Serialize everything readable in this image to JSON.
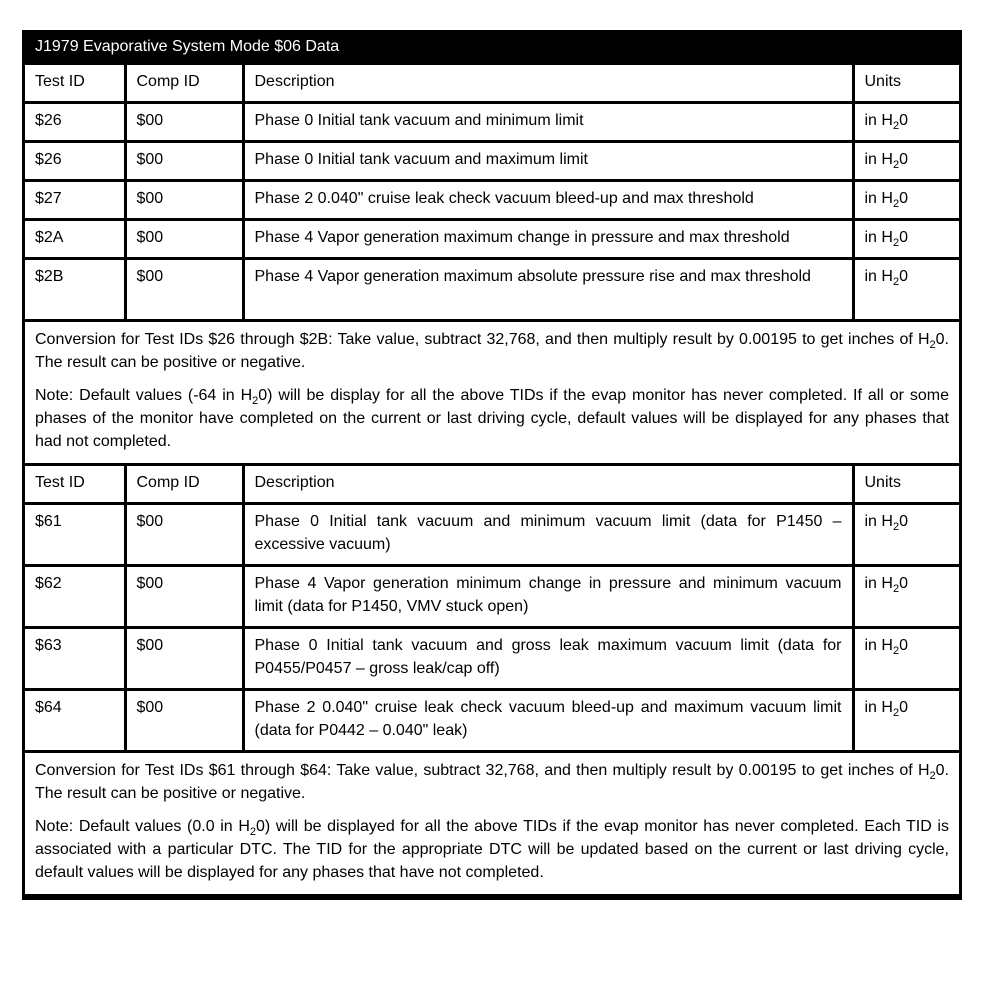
{
  "title": "J1979 Evaporative System Mode $06 Data",
  "headers": {
    "test_id": "Test ID",
    "comp_id": "Comp ID",
    "description": "Description",
    "units": "Units"
  },
  "units_prefix": "in H",
  "units_sub": "2",
  "units_suffix": "0",
  "section1": {
    "rows": [
      {
        "test_id": "$26",
        "comp_id": "$00",
        "description": "Phase 0 Initial tank vacuum and minimum limit"
      },
      {
        "test_id": "$26",
        "comp_id": "$00",
        "description": "Phase 0 Initial tank vacuum and maximum limit"
      },
      {
        "test_id": "$27",
        "comp_id": "$00",
        "description": "Phase 2 0.040\" cruise leak check vacuum bleed-up and max threshold"
      },
      {
        "test_id": "$2A",
        "comp_id": "$00",
        "description": "Phase 4 Vapor generation maximum change in pressure and max threshold"
      },
      {
        "test_id": "$2B",
        "comp_id": "$00",
        "description": "Phase 4 Vapor generation maximum absolute pressure rise and max threshold"
      }
    ],
    "conversion_a": "Conversion for Test IDs $26 through $2B: Take value, subtract 32,768, and then multiply result by 0.00195 to get inches of H",
    "conversion_b": "0. The result can be positive or negative.",
    "note_a": "Note: Default values (-64 in H",
    "note_b": "0) will be display for all the above TIDs if the evap monitor has never completed. If all or some phases of the monitor have completed on the current or last driving cycle, default values will be displayed for any phases that had not completed."
  },
  "section2": {
    "rows": [
      {
        "test_id": "$61",
        "comp_id": "$00",
        "description": "Phase 0 Initial tank vacuum and minimum vacuum limit (data for P1450 – excessive vacuum)"
      },
      {
        "test_id": "$62",
        "comp_id": "$00",
        "description": "Phase 4 Vapor generation minimum change in pressure and minimum vacuum limit (data for P1450, VMV stuck open)"
      },
      {
        "test_id": "$63",
        "comp_id": "$00",
        "description": "Phase 0 Initial tank vacuum and gross leak maximum vacuum limit (data for P0455/P0457 – gross leak/cap off)"
      },
      {
        "test_id": "$64",
        "comp_id": "$00",
        "description": "Phase 2 0.040\" cruise leak check vacuum bleed-up and maximum vacuum limit (data for P0442 – 0.040\" leak)"
      }
    ],
    "conversion_a": "Conversion for Test IDs $61 through $64: Take value, subtract 32,768, and then multiply result by 0.00195 to get inches of H",
    "conversion_b": "0. The result can be positive or negative.",
    "note_a": "Note: Default values (0.0 in H",
    "note_b": "0) will be displayed for all the above TIDs if the evap monitor has never completed. Each TID is associated with a particular DTC. The TID for the appropriate DTC will be updated based on the current or last driving cycle, default values will be displayed for any phases that have not completed."
  }
}
